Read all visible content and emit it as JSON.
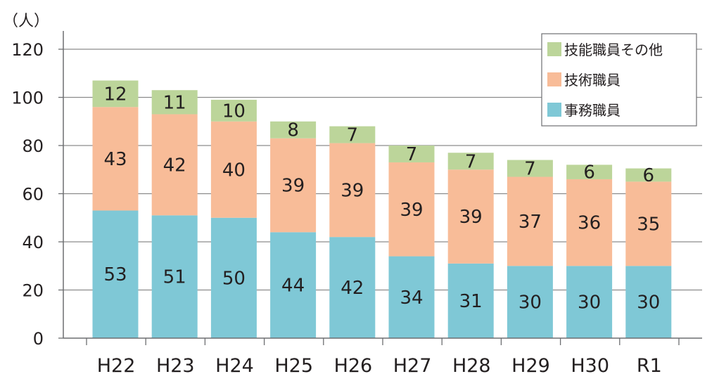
{
  "chart_data": {
    "type": "bar",
    "stacked": true,
    "unit_label": "（人）",
    "categories": [
      "H22",
      "H23",
      "H24",
      "H25",
      "H26",
      "H27",
      "H28",
      "H29",
      "H30",
      "R1"
    ],
    "series": [
      {
        "name": "事務職員",
        "color": "#7fc8d6",
        "values": [
          53,
          51,
          50,
          44,
          42,
          34,
          31,
          30,
          30,
          30
        ]
      },
      {
        "name": "技術職員",
        "color": "#f8bc98",
        "values": [
          43,
          42,
          40,
          39,
          39,
          39,
          39,
          37,
          36,
          35
        ]
      },
      {
        "name": "技能職員その他",
        "color": "#bcd59a",
        "values": [
          12,
          11,
          10,
          8,
          7,
          7,
          7,
          7,
          6,
          6
        ]
      }
    ],
    "bar_tops": [
      107,
      103,
      99,
      90,
      88,
      80,
      77,
      74,
      72,
      70.5
    ],
    "ylim": [
      0,
      120
    ],
    "yticks": [
      0,
      20,
      40,
      60,
      80,
      100,
      120
    ],
    "grid": true,
    "legend_position": "top-right"
  }
}
